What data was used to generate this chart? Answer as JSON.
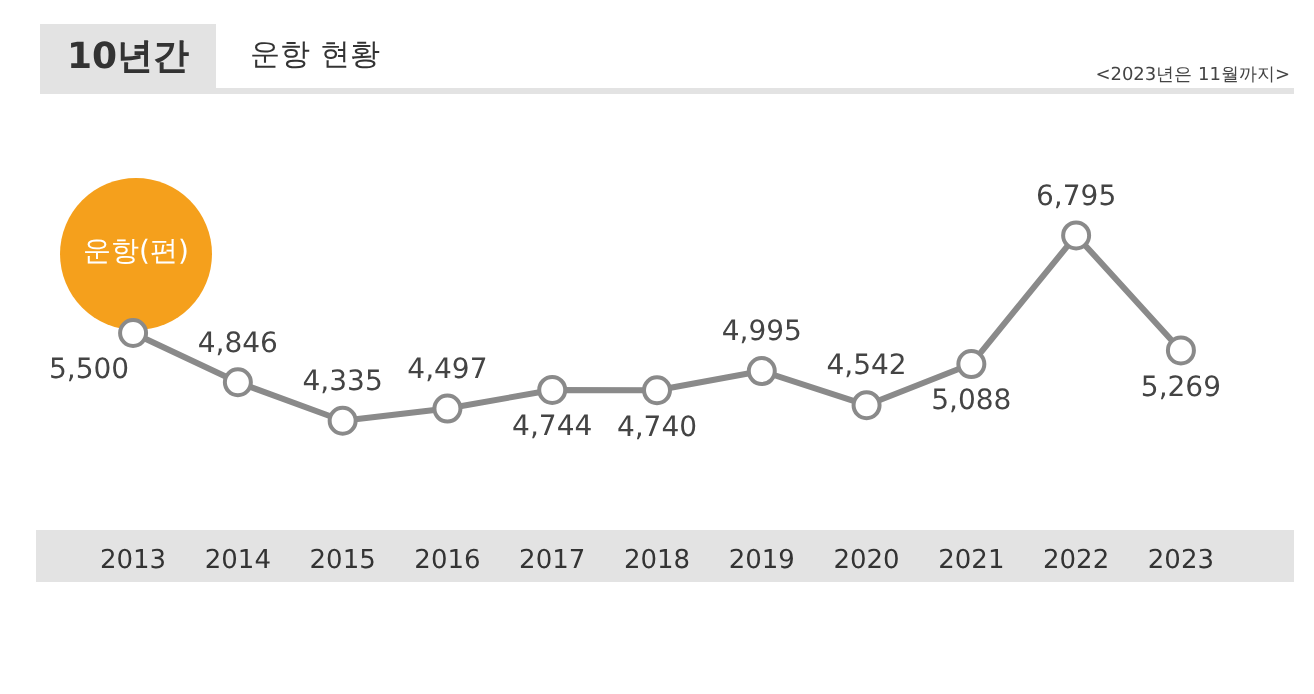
{
  "chart_data": {
    "type": "line",
    "title": "10년간",
    "subtitle": "운항 현황",
    "ylabel": "운항(편)",
    "annotations": [
      "<2023년은 11월까지>"
    ],
    "categories": [
      "2013",
      "2014",
      "2015",
      "2016",
      "2017",
      "2018",
      "2019",
      "2020",
      "2021",
      "2022",
      "2023"
    ],
    "series": [
      {
        "color": "#8a8a8a",
        "values": [
          5500,
          4846,
          4335,
          4497,
          4744,
          4740,
          4995,
          4542,
          5088,
          6795,
          5269
        ],
        "value_labels": [
          "5,500",
          "4,846",
          "4,335",
          "4,497",
          "4,744",
          "4,740",
          "4,995",
          "4,542",
          "5,088",
          "6,795",
          "5,269"
        ]
      }
    ],
    "marker": "circle",
    "line_style": "solid",
    "grid": false,
    "legend": false,
    "tick_labels": "x"
  }
}
